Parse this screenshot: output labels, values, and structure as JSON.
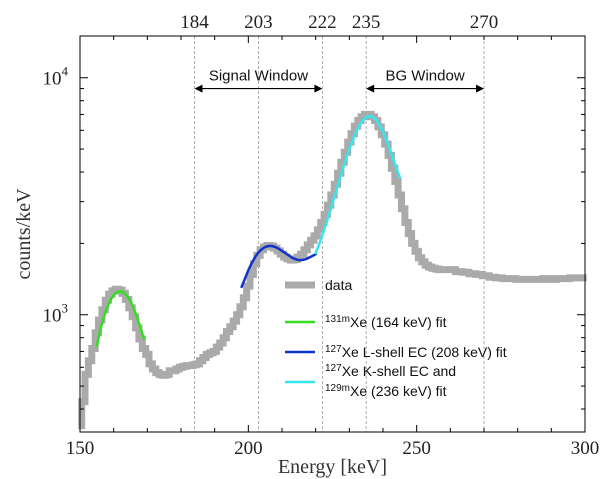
{
  "chart_data": {
    "type": "line",
    "xlabel": "Energy [keV]",
    "ylabel": "counts/keV",
    "xlim": [
      150,
      300
    ],
    "ylim": [
      320,
      15000
    ],
    "yscale": "log",
    "x_ticks": [
      150,
      200,
      250,
      300
    ],
    "x_tick_labels": [
      "150",
      "200",
      "250",
      "300"
    ],
    "y_ticks": [
      1000,
      10000
    ],
    "y_tick_labels": [
      {
        "base": "10",
        "exp": "3"
      },
      {
        "base": "10",
        "exp": "4"
      }
    ],
    "reference_lines": [
      {
        "x": 184,
        "label": "184"
      },
      {
        "x": 203,
        "label": "203"
      },
      {
        "x": 222,
        "label": "222"
      },
      {
        "x": 235,
        "label": "235"
      },
      {
        "x": 270,
        "label": "270"
      }
    ],
    "windows": [
      {
        "label": "Signal Window",
        "x_start": 184,
        "x_end": 222,
        "y": 9000
      },
      {
        "label": "BG Window",
        "x_start": 235,
        "x_end": 270,
        "y": 9000
      }
    ],
    "legend_position": "lower-right",
    "series": [
      {
        "name": "data",
        "color": "#aaaaaa",
        "style": "step",
        "x": [
          150,
          151,
          152,
          153,
          154,
          155,
          156,
          157,
          158,
          159,
          160,
          161,
          162,
          163,
          164,
          165,
          166,
          167,
          168,
          169,
          170,
          171,
          172,
          173,
          174,
          175,
          176,
          177,
          178,
          179,
          180,
          181,
          182,
          183,
          184,
          185,
          186,
          187,
          188,
          189,
          190,
          191,
          192,
          193,
          194,
          195,
          196,
          197,
          198,
          199,
          200,
          201,
          202,
          203,
          204,
          205,
          206,
          207,
          208,
          209,
          210,
          211,
          212,
          213,
          214,
          215,
          216,
          217,
          218,
          219,
          220,
          221,
          222,
          223,
          224,
          225,
          226,
          227,
          228,
          229,
          230,
          231,
          232,
          233,
          234,
          235,
          236,
          237,
          238,
          239,
          240,
          241,
          242,
          243,
          244,
          245,
          246,
          247,
          248,
          249,
          250,
          251,
          252,
          253,
          254,
          255,
          256,
          257,
          258,
          259,
          260,
          262,
          264,
          266,
          268,
          270,
          272,
          274,
          276,
          278,
          280,
          282,
          284,
          286,
          288,
          290,
          292,
          294,
          296,
          298,
          300
        ],
        "y": [
          340,
          430,
          560,
          640,
          720,
          840,
          950,
          1050,
          1150,
          1220,
          1260,
          1280,
          1270,
          1230,
          1160,
          1070,
          980,
          880,
          790,
          720,
          680,
          620,
          590,
          570,
          560,
          555,
          560,
          580,
          580,
          590,
          600,
          605,
          610,
          610,
          615,
          620,
          640,
          660,
          680,
          690,
          700,
          730,
          760,
          800,
          850,
          890,
          940,
          1000,
          1080,
          1180,
          1320,
          1480,
          1640,
          1780,
          1880,
          1930,
          1960,
          1950,
          1910,
          1860,
          1800,
          1750,
          1720,
          1700,
          1710,
          1750,
          1800,
          1880,
          1970,
          2060,
          2150,
          2280,
          2450,
          2650,
          2900,
          3200,
          3550,
          3950,
          4400,
          4850,
          5350,
          5800,
          6250,
          6600,
          6850,
          7000,
          7000,
          6850,
          6600,
          6200,
          5750,
          5250,
          4700,
          4150,
          3650,
          3200,
          2800,
          2450,
          2200,
          2000,
          1850,
          1740,
          1670,
          1620,
          1590,
          1570,
          1560,
          1550,
          1550,
          1550,
          1550,
          1520,
          1510,
          1490,
          1480,
          1460,
          1440,
          1430,
          1420,
          1420,
          1410,
          1410,
          1410,
          1410,
          1420,
          1410,
          1420,
          1420,
          1430,
          1430,
          1430
        ]
      },
      {
        "name": "131mXe (164 keV) fit",
        "legend_main": "Xe (164 keV) fit",
        "legend_sup": "131m",
        "color": "#33dd22",
        "style": "line",
        "x": [
          155,
          156,
          157,
          158,
          159,
          160,
          161,
          162,
          163,
          164,
          165,
          166,
          167,
          168,
          169
        ],
        "y": [
          740,
          860,
          970,
          1070,
          1150,
          1210,
          1245,
          1255,
          1240,
          1200,
          1140,
          1060,
          970,
          880,
          790
        ]
      },
      {
        "name": "127Xe L-shell EC (208 keV) fit",
        "legend_main": "Xe L-shell EC (208 keV) fit",
        "legend_sup": "127",
        "color": "#1133cc",
        "style": "line",
        "x": [
          198,
          199,
          200,
          201,
          202,
          203,
          204,
          205,
          206,
          207,
          208,
          209,
          210,
          211,
          212,
          213,
          214,
          215,
          216,
          217,
          218,
          219,
          220
        ],
        "y": [
          1310,
          1420,
          1540,
          1650,
          1750,
          1830,
          1890,
          1930,
          1950,
          1950,
          1930,
          1900,
          1860,
          1820,
          1780,
          1740,
          1715,
          1700,
          1700,
          1715,
          1740,
          1770,
          1800
        ]
      },
      {
        "name": "127Xe K-shell EC and 129mXe (236 keV) fit",
        "legend_lines": [
          {
            "sup": "127",
            "main": "Xe K-shell EC and"
          },
          {
            "sup": "129m",
            "main": "Xe (236 keV) fit"
          }
        ],
        "color": "#33e6f0",
        "style": "line",
        "x": [
          220,
          221,
          222,
          223,
          224,
          225,
          226,
          227,
          228,
          229,
          230,
          231,
          232,
          233,
          234,
          235,
          236,
          237,
          238,
          239,
          240,
          241,
          242,
          243,
          244,
          245
        ],
        "y": [
          1820,
          1980,
          2170,
          2400,
          2650,
          2950,
          3300,
          3680,
          4100,
          4550,
          5000,
          5450,
          5900,
          6280,
          6600,
          6820,
          6900,
          6830,
          6620,
          6300,
          5900,
          5450,
          5000,
          4550,
          4150,
          3800
        ]
      }
    ]
  }
}
